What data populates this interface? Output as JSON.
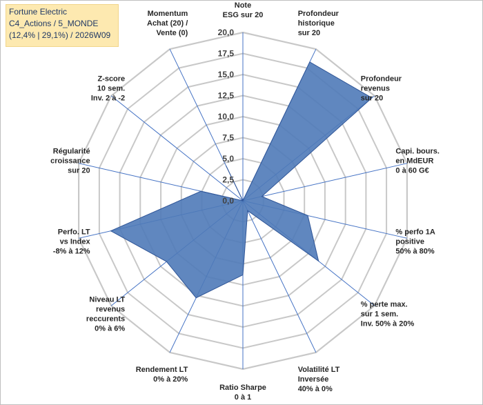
{
  "header": {
    "line1": "Fortune Electric",
    "line2": "C4_Actions / 5_MONDE",
    "line3": "(12,4% | 29,1%) / 2026W09"
  },
  "colors": {
    "fill": "#4f7ab8",
    "stroke": "#2f5597",
    "grid": "#c8c8c8",
    "spoke": "#4472c4"
  },
  "chart_data": {
    "type": "radar",
    "title": "Fortune Electric C4_Actions / 5_MONDE (12,4% | 29,1%) / 2026W09",
    "rmin": 0,
    "rmax": 20,
    "grid_step": 2.5,
    "tick_labels": [
      "0,0",
      "2,5",
      "5,0",
      "7,5",
      "10,0",
      "12,5",
      "15,0",
      "17,5",
      "20,0"
    ],
    "grid": true,
    "legend": false,
    "axes": [
      {
        "label": [
          "Note",
          "ESG sur 20"
        ],
        "value": 0
      },
      {
        "label": [
          "Profondeur",
          "historique",
          "sur 20"
        ],
        "value": 18.3
      },
      {
        "label": [
          "Profondeur",
          "revenus",
          "sur 20"
        ],
        "value": 19.6
      },
      {
        "label": [
          "Capi. bours.",
          "en MdEUR",
          "0 à 60 G€"
        ],
        "value": 2.3
      },
      {
        "label": [
          "% perfo 1A",
          "positive",
          "50% à 80%"
        ],
        "value": 7.9
      },
      {
        "label": [
          "% perte max.",
          "sur 1 sem.",
          "Inv. 50% à 20%"
        ],
        "value": 11.5
      },
      {
        "label": [
          "Volatilité LT",
          "Inversée",
          "40% à 0%"
        ],
        "value": 1.3
      },
      {
        "label": [
          "Ratio Sharpe",
          "0 à 1"
        ],
        "value": 8.8
      },
      {
        "label": [
          "Rendement LT",
          "0% à 20%"
        ],
        "value": 12.8
      },
      {
        "label": [
          "Niveau LT",
          "revenus",
          "reccurents",
          "0% à 6%"
        ],
        "value": 11.6
      },
      {
        "label": [
          "Perfo. LT",
          "vs Index",
          "-8% à 12%"
        ],
        "value": 16.1
      },
      {
        "label": [
          "Régularité",
          "croissance",
          "sur 20"
        ],
        "value": 5.1
      },
      {
        "label": [
          "Z-score",
          "10 sem.",
          "Inv. 2 à -2"
        ],
        "value": 0
      },
      {
        "label": [
          "Momentum",
          "Achat (20) /",
          "Vente (0)"
        ],
        "value": 4.6
      }
    ]
  }
}
